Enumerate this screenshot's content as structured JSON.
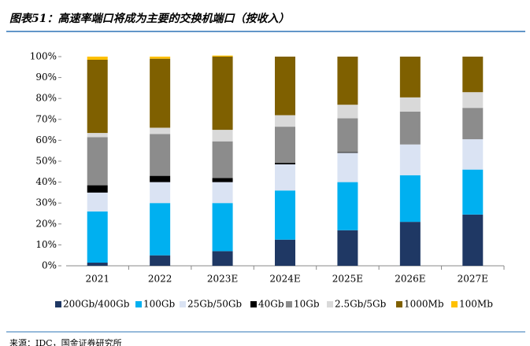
{
  "header": {
    "title": "图表51：高速率端口将成为主要的交换机端口（按收入）"
  },
  "chart_data": {
    "type": "stacked_bar",
    "categories": [
      "2021",
      "2022",
      "2023E",
      "2024E",
      "2025E",
      "2026E",
      "2027E"
    ],
    "series": [
      {
        "name": "200Gb/400Gb",
        "color": "#1f3864",
        "values": [
          1.5,
          5,
          7,
          12.5,
          17,
          21,
          24.5
        ]
      },
      {
        "name": "100Gb",
        "color": "#00b0f0",
        "values": [
          24.5,
          25,
          23,
          23.5,
          23,
          22.3,
          21.5
        ]
      },
      {
        "name": "25Gb/50Gb",
        "color": "#dae3f3",
        "values": [
          9,
          10,
          10,
          12.5,
          14,
          14.7,
          14.5
        ]
      },
      {
        "name": "40Gb",
        "color": "#000000",
        "values": [
          3.5,
          3,
          2,
          0.7,
          0.3,
          0,
          0
        ]
      },
      {
        "name": "10Gb",
        "color": "#8c8c8c",
        "values": [
          23,
          20,
          17.5,
          17.3,
          16.2,
          15.7,
          15
        ]
      },
      {
        "name": "2.5Gb/5Gb",
        "color": "#d9d9d9",
        "values": [
          2,
          3,
          5.5,
          5.5,
          6.5,
          6.8,
          7.5
        ]
      },
      {
        "name": "1000Mb",
        "color": "#7f6000",
        "values": [
          35,
          33,
          35,
          28,
          23,
          19.5,
          17
        ]
      },
      {
        "name": "100Mb",
        "color": "#ffc000",
        "values": [
          1.5,
          1,
          0.5,
          0,
          0,
          0,
          0
        ]
      }
    ],
    "ylim": [
      0,
      100
    ],
    "yticks": [
      {
        "value": 0,
        "label": "0%"
      },
      {
        "value": 10,
        "label": "10%"
      },
      {
        "value": 20,
        "label": "20%"
      },
      {
        "value": 30,
        "label": "30%"
      },
      {
        "value": 40,
        "label": "40%"
      },
      {
        "value": 50,
        "label": "50%"
      },
      {
        "value": 60,
        "label": "60%"
      },
      {
        "value": 70,
        "label": "70%"
      },
      {
        "value": 80,
        "label": "80%"
      },
      {
        "value": 90,
        "label": "90%"
      },
      {
        "value": 100,
        "label": "100%"
      }
    ],
    "legend": "bottom"
  },
  "footer": {
    "source": "来源：IDC，国金证券研究所"
  }
}
